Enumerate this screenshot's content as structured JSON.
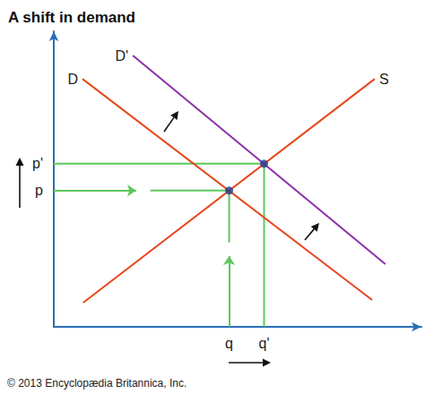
{
  "chart_data": {
    "type": "line",
    "title": "A shift in demand",
    "caption": "© 2013 Encyclopædia Britannica, Inc.",
    "xlim": [
      0,
      100
    ],
    "ylim": [
      0,
      100
    ],
    "xticks": [
      {
        "value": 47.7,
        "label": "q"
      },
      {
        "value": 57.2,
        "label": "q'"
      }
    ],
    "yticks": [
      {
        "value": 46.1,
        "label": "p"
      },
      {
        "value": 55.2,
        "label": "p'"
      }
    ],
    "grid": false,
    "color": "#5cc85c",
    "series": [
      {
        "name": "D",
        "color": "#e8461e",
        "x": [
          7.8,
          86.6
        ],
        "values": [
          83.9,
          9.1
        ]
      },
      {
        "name": "D'",
        "color": "#8e2fa6",
        "x": [
          21.5,
          90.2
        ],
        "values": [
          91.8,
          21.2
        ]
      },
      {
        "name": "S",
        "color": "#e8461e",
        "x": [
          8.0,
          87.3
        ],
        "values": [
          8.2,
          83.9
        ]
      }
    ]
  }
}
